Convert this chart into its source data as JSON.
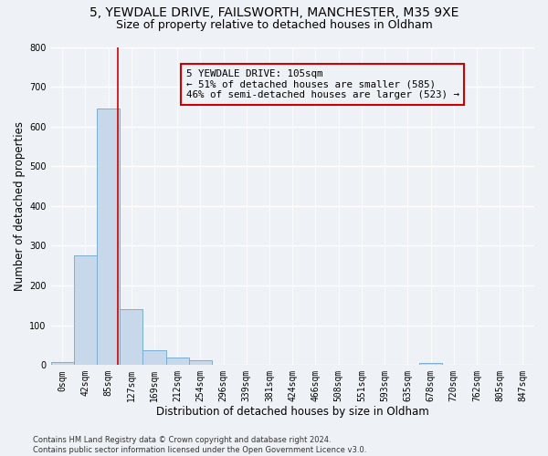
{
  "title1": "5, YEWDALE DRIVE, FAILSWORTH, MANCHESTER, M35 9XE",
  "title2": "Size of property relative to detached houses in Oldham",
  "xlabel": "Distribution of detached houses by size in Oldham",
  "ylabel": "Number of detached properties",
  "bar_values": [
    7,
    275,
    645,
    140,
    37,
    20,
    12,
    0,
    0,
    0,
    0,
    0,
    0,
    0,
    0,
    0,
    5,
    0,
    0,
    0,
    0
  ],
  "bin_labels": [
    "0sqm",
    "42sqm",
    "85sqm",
    "127sqm",
    "169sqm",
    "212sqm",
    "254sqm",
    "296sqm",
    "339sqm",
    "381sqm",
    "424sqm",
    "466sqm",
    "508sqm",
    "551sqm",
    "593sqm",
    "635sqm",
    "678sqm",
    "720sqm",
    "762sqm",
    "805sqm",
    "847sqm"
  ],
  "bar_color": "#c8d8eb",
  "bar_edge_color": "#7aaed4",
  "vline_x": 2.42,
  "vline_color": "#cc0000",
  "annotation_text": "5 YEWDALE DRIVE: 105sqm\n← 51% of detached houses are smaller (585)\n46% of semi-detached houses are larger (523) →",
  "annotation_box_color": "#cc0000",
  "ylim": [
    0,
    800
  ],
  "yticks": [
    0,
    100,
    200,
    300,
    400,
    500,
    600,
    700,
    800
  ],
  "footer_text": "Contains HM Land Registry data © Crown copyright and database right 2024.\nContains public sector information licensed under the Open Government Licence v3.0.",
  "background_color": "#eef2f7",
  "grid_color": "#ffffff",
  "title_fontsize": 10,
  "subtitle_fontsize": 9,
  "axis_fontsize": 8.5,
  "tick_fontsize": 7
}
